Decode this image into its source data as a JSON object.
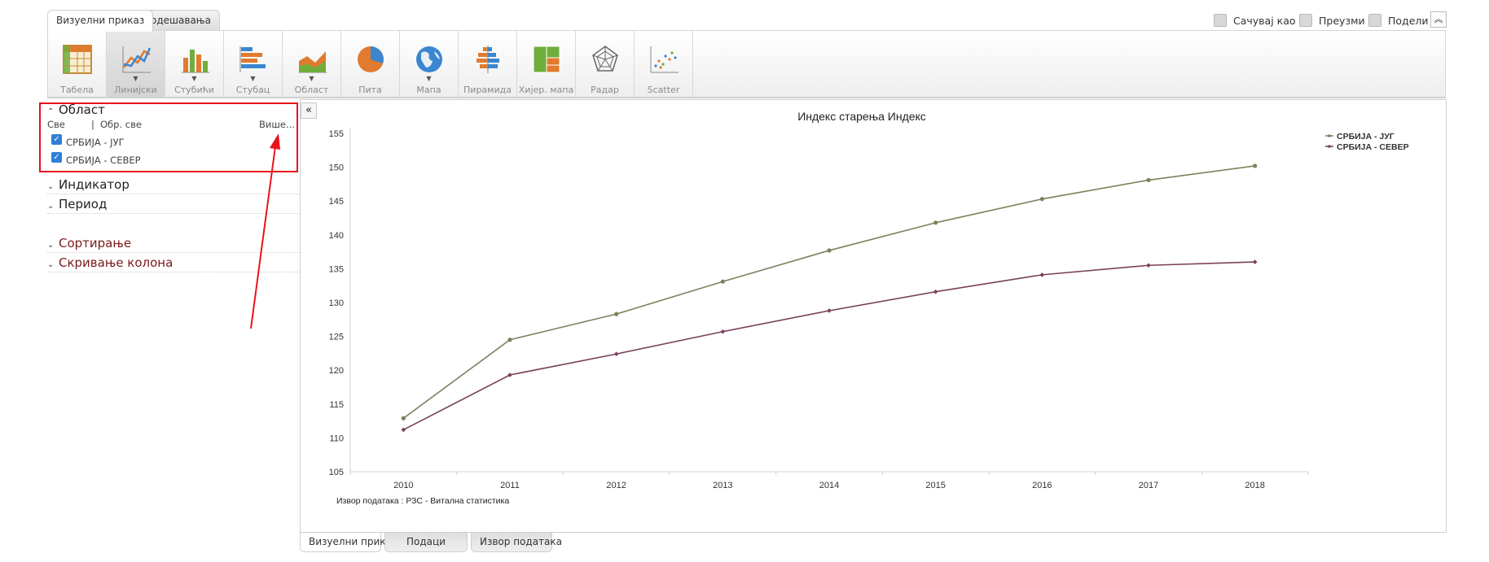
{
  "top_tabs": [
    "Визуелни приказ",
    "Подешавања"
  ],
  "actions": {
    "save_as": "Сачувај као",
    "download": "Преузми",
    "share": "Подели",
    "collapse": "«"
  },
  "toolbar": [
    {
      "label": "Табела",
      "icon": "table-icon"
    },
    {
      "label": "Линијски",
      "icon": "line-chart-icon",
      "selected": true,
      "dropdown": true
    },
    {
      "label": "Стубићи",
      "icon": "column-chart-icon",
      "dropdown": true
    },
    {
      "label": "Стубац",
      "icon": "bar-chart-icon",
      "dropdown": true
    },
    {
      "label": "Област",
      "icon": "area-chart-icon",
      "dropdown": true
    },
    {
      "label": "Пита",
      "icon": "pie-chart-icon"
    },
    {
      "label": "Мапа",
      "icon": "globe-icon",
      "dropdown": true
    },
    {
      "label": "Пирамида",
      "icon": "pyramid-chart-icon"
    },
    {
      "label": "Хијер. мапа",
      "icon": "treemap-icon"
    },
    {
      "label": "Радар",
      "icon": "radar-chart-icon"
    },
    {
      "label": "Scatter",
      "icon": "scatter-chart-icon"
    }
  ],
  "filter_panel": {
    "oblast": {
      "title": "Област",
      "all": "Све",
      "separator": "|",
      "invert": "Обр. све",
      "more": "Више...",
      "items": [
        {
          "label": "СРБИЈА - ЈУГ",
          "checked": true
        },
        {
          "label": "СРБИЈА - СЕВЕР",
          "checked": true
        }
      ]
    },
    "indikator": "Индикатор",
    "period": "Период",
    "sortiranje": "Сортирање",
    "skrivanje": "Скривање колона"
  },
  "panel_toggle": "«",
  "chart_data": {
    "type": "line",
    "title": "Индекс старења Индекс",
    "categories": [
      "2010",
      "2011",
      "2012",
      "2013",
      "2014",
      "2015",
      "2016",
      "2017",
      "2018"
    ],
    "ylim": [
      105,
      155
    ],
    "yticks": [
      "105",
      "110",
      "115",
      "120",
      "125",
      "130",
      "135",
      "140",
      "145",
      "150",
      "155"
    ],
    "legend_position": "top-right",
    "grid": false,
    "series": [
      {
        "name": "СРБИЈА - ЈУГ",
        "color": "#7f7f5e",
        "values": [
          112.9,
          124.5,
          128.3,
          133.1,
          137.7,
          141.8,
          145.3,
          148.1,
          150.2
        ]
      },
      {
        "name": "СРБИЈА - СЕВЕР",
        "color": "#7a3f5c",
        "values": [
          111.2,
          119.3,
          122.4,
          125.7,
          128.8,
          131.6,
          134.1,
          135.5,
          136.0
        ]
      }
    ],
    "source_note": "Извор података : РЗС - Витална статистика"
  },
  "bottom_tabs": [
    "Визуелни приказ",
    "Подаци",
    "Извор података"
  ]
}
